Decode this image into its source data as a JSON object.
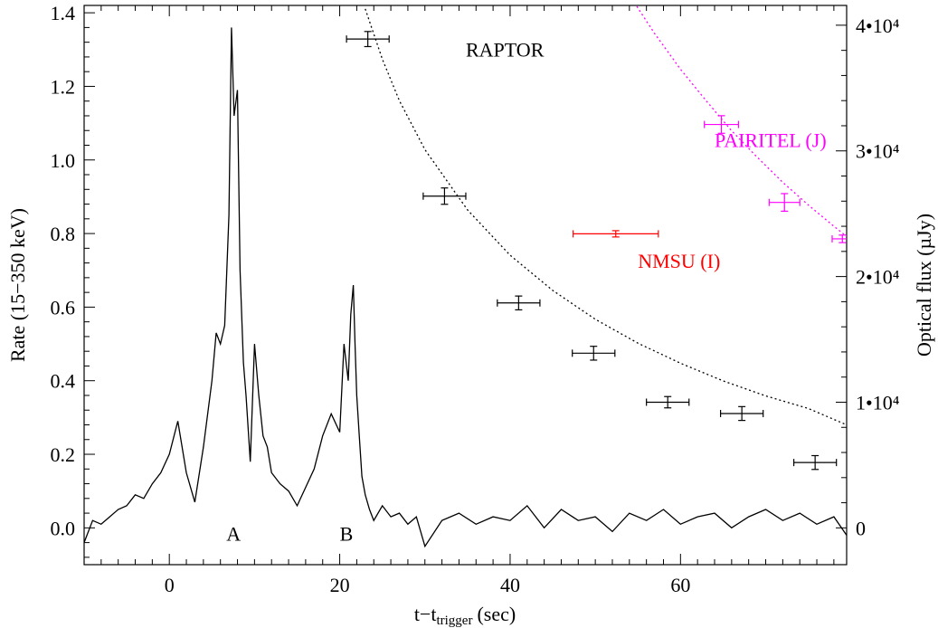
{
  "chart_data": {
    "type": "line",
    "xlabel": "t−t",
    "xlabel_sub": "trigger",
    "xlabel_unit": "(sec)",
    "ylabel_left": "Rate (15−350 keV)",
    "ylabel_right": "Optical flux (µJy)",
    "xlim": [
      -10,
      79.5
    ],
    "ylim_left": [
      -0.1,
      1.42
    ],
    "ylim_right": [
      -2927,
      41575
    ],
    "x_ticks": [
      0,
      20,
      40,
      60
    ],
    "y_ticks_left": [
      {
        "value": 0.0,
        "label": "0.0"
      },
      {
        "value": 0.2,
        "label": "0.2"
      },
      {
        "value": 0.4,
        "label": "0.4"
      },
      {
        "value": 0.6,
        "label": "0.6"
      },
      {
        "value": 0.8,
        "label": "0.8"
      },
      {
        "value": 1.0,
        "label": "1.0"
      },
      {
        "value": 1.2,
        "label": "1.2"
      },
      {
        "value": 1.4,
        "label": "1.4"
      }
    ],
    "y_ticks_right": [
      {
        "value": 0,
        "label": "0"
      },
      {
        "value": 10000,
        "label": "1•10⁴"
      },
      {
        "value": 20000,
        "label": "2•10⁴"
      },
      {
        "value": 30000,
        "label": "3•10⁴"
      },
      {
        "value": 40000,
        "label": "4•10⁴"
      }
    ],
    "grid": false,
    "series": [
      {
        "axis": "left",
        "style": "line",
        "color": "#000000",
        "x": [
          -10,
          -9,
          -8,
          -7,
          -6,
          -5,
          -4,
          -3,
          -2,
          -1,
          0,
          1,
          2,
          3,
          4,
          5,
          5.5,
          6,
          6.5,
          7,
          7.3,
          7.6,
          8,
          8.3,
          8.7,
          9,
          9.5,
          10,
          10.5,
          11,
          11.5,
          12,
          13,
          14,
          15,
          16,
          17,
          18,
          19,
          20,
          20.5,
          21,
          21.3,
          21.6,
          21.8,
          22,
          22.3,
          22.6,
          23,
          23.5,
          24,
          25,
          26,
          27,
          28,
          29,
          30,
          32,
          34,
          36,
          38,
          40,
          42,
          44,
          46,
          48,
          50,
          52,
          54,
          56,
          58,
          60,
          62,
          64,
          66,
          68,
          70,
          72,
          74,
          76,
          78,
          79.5
        ],
        "y": [
          -0.04,
          0.02,
          0.01,
          0.03,
          0.05,
          0.06,
          0.09,
          0.08,
          0.12,
          0.15,
          0.2,
          0.29,
          0.15,
          0.07,
          0.22,
          0.4,
          0.53,
          0.5,
          0.55,
          0.85,
          1.36,
          1.12,
          1.19,
          0.7,
          0.45,
          0.36,
          0.18,
          0.5,
          0.36,
          0.25,
          0.22,
          0.15,
          0.12,
          0.1,
          0.06,
          0.11,
          0.16,
          0.25,
          0.31,
          0.26,
          0.5,
          0.4,
          0.58,
          0.66,
          0.5,
          0.36,
          0.25,
          0.14,
          0.09,
          0.05,
          0.02,
          0.06,
          0.03,
          0.04,
          0.01,
          0.03,
          -0.05,
          0.02,
          0.04,
          0.01,
          0.03,
          0.02,
          0.06,
          0.0,
          0.05,
          0.02,
          0.03,
          -0.01,
          0.04,
          0.02,
          0.05,
          0.01,
          0.03,
          0.04,
          0.0,
          0.03,
          0.05,
          0.02,
          0.04,
          0.01,
          0.03,
          -0.02
        ]
      },
      {
        "name": "RAPTOR",
        "axis": "right",
        "style": "errorbar",
        "color": "#000000",
        "points": [
          {
            "x": 23.3,
            "xerr": 2.5,
            "y": 38900,
            "yerr": 600
          },
          {
            "x": 32.3,
            "xerr": 2.5,
            "y": 26400,
            "yerr": 650
          },
          {
            "x": 41.0,
            "xerr": 2.5,
            "y": 17900,
            "yerr": 550
          },
          {
            "x": 49.8,
            "xerr": 2.5,
            "y": 13900,
            "yerr": 550
          },
          {
            "x": 58.5,
            "xerr": 2.5,
            "y": 10000,
            "yerr": 450
          },
          {
            "x": 67.2,
            "xerr": 2.5,
            "y": 9100,
            "yerr": 550
          },
          {
            "x": 75.8,
            "xerr": 2.5,
            "y": 5200,
            "yerr": 550
          }
        ],
        "fit": {
          "x": [
            23,
            25,
            27,
            30,
            35,
            40,
            45,
            50,
            55,
            60,
            65,
            70,
            75,
            79.5
          ],
          "y": [
            41300,
            37300,
            34000,
            30100,
            25300,
            21700,
            18900,
            16600,
            14700,
            13100,
            11700,
            10500,
            9500,
            8200
          ]
        }
      },
      {
        "name": "PAIRITEL (J)",
        "axis": "right",
        "style": "errorbar",
        "color": "#ff00ff",
        "points": [
          {
            "x": 64.8,
            "xerr": 2.0,
            "y": 32100,
            "yerr": 700
          },
          {
            "x": 72.2,
            "xerr": 1.8,
            "y": 25900,
            "yerr": 700
          },
          {
            "x": 79.0,
            "xerr": 1.2,
            "y": 23000,
            "yerr": 300
          }
        ],
        "fit": {
          "x": [
            54,
            57,
            60,
            63,
            66,
            69,
            72,
            75,
            78,
            79.5
          ],
          "y": [
            42400,
            39300,
            36500,
            34000,
            31600,
            29500,
            27500,
            25700,
            24000,
            23200
          ]
        }
      },
      {
        "name": "NMSU (I)",
        "axis": "right",
        "style": "errorbar",
        "color": "#ff0000",
        "points": [
          {
            "x": 52.4,
            "xerr": 5.0,
            "y": 23400,
            "yerr": 250
          }
        ]
      }
    ],
    "annotations": [
      {
        "text": "A",
        "x": 6.7,
        "y": -0.035,
        "axis": "left",
        "color": "#000000"
      },
      {
        "text": "B",
        "x": 20.0,
        "y": -0.035,
        "axis": "left",
        "color": "#000000"
      },
      {
        "text": "RAPTOR",
        "x": 34.8,
        "y": 37500,
        "axis": "right",
        "color": "#000000"
      },
      {
        "text": "PAIRITEL (J)",
        "x": 64.0,
        "y": 30300,
        "axis": "right",
        "color": "#ff00ff"
      },
      {
        "text": "NMSU (I)",
        "x": 55.0,
        "y": 20700,
        "axis": "right",
        "color": "#ff0000"
      }
    ]
  }
}
